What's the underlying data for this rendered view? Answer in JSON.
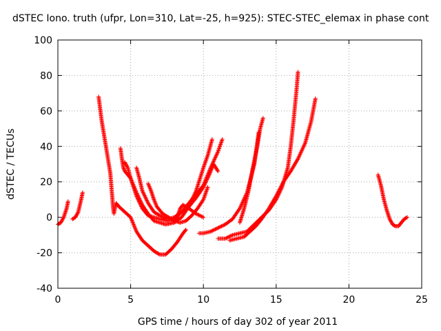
{
  "chart_data": {
    "type": "scatter",
    "title": "dSTEC Iono. truth (ufpr, Lon=310, Lat=-25, h=925): STEC-STEC_elemax in phase cont",
    "xlabel": "GPS time / hours of day 302 of year 2011",
    "ylabel": "dSTEC  / TECUs",
    "xlim": [
      0,
      25
    ],
    "ylim": [
      -40,
      100
    ],
    "xticks": [
      "0",
      "5",
      "10",
      "15",
      "20",
      "25"
    ],
    "yticks": [
      "-40",
      "-20",
      "0",
      "20",
      "40",
      "60",
      "80",
      "100"
    ],
    "grid": true,
    "marker": "+",
    "color": "#ff0000",
    "series": [
      {
        "points": [
          [
            0.0,
            -4
          ],
          [
            0.2,
            -3
          ],
          [
            0.4,
            0
          ],
          [
            0.6,
            5
          ],
          [
            0.7,
            9
          ]
        ]
      },
      {
        "points": [
          [
            1.0,
            -1
          ],
          [
            1.2,
            0
          ],
          [
            1.4,
            3
          ],
          [
            1.6,
            10
          ],
          [
            1.7,
            14
          ]
        ]
      },
      {
        "points": [
          [
            2.8,
            68
          ],
          [
            3.0,
            55
          ],
          [
            3.2,
            45
          ],
          [
            3.4,
            35
          ],
          [
            3.6,
            25
          ],
          [
            3.7,
            15
          ],
          [
            3.8,
            5
          ],
          [
            3.85,
            2
          ],
          [
            4.0,
            8
          ],
          [
            4.2,
            6
          ],
          [
            4.6,
            3
          ],
          [
            5.0,
            0
          ],
          [
            5.4,
            -8
          ],
          [
            5.8,
            -13
          ],
          [
            6.2,
            -16
          ],
          [
            6.6,
            -19
          ],
          [
            7.0,
            -21
          ],
          [
            7.4,
            -21
          ],
          [
            7.8,
            -18
          ],
          [
            8.2,
            -14
          ],
          [
            8.6,
            -9
          ],
          [
            8.8,
            -7
          ]
        ]
      },
      {
        "points": [
          [
            4.3,
            39
          ],
          [
            4.4,
            33
          ],
          [
            4.5,
            28
          ],
          [
            4.6,
            26
          ],
          [
            5.0,
            22
          ],
          [
            5.4,
            14
          ],
          [
            5.8,
            7
          ],
          [
            6.2,
            2
          ],
          [
            6.6,
            -2
          ],
          [
            7.0,
            -3
          ],
          [
            7.4,
            -4
          ],
          [
            8.0,
            -3
          ],
          [
            8.5,
            0
          ],
          [
            9.0,
            6
          ],
          [
            9.5,
            15
          ],
          [
            10.0,
            28
          ],
          [
            10.3,
            35
          ],
          [
            10.6,
            44
          ]
        ]
      },
      {
        "points": [
          [
            4.6,
            31
          ],
          [
            4.8,
            28
          ],
          [
            5.0,
            22
          ],
          [
            5.4,
            12
          ],
          [
            5.8,
            5
          ],
          [
            6.2,
            1
          ],
          [
            6.6,
            0
          ],
          [
            7.0,
            -1
          ],
          [
            7.5,
            -2
          ],
          [
            8.0,
            -1
          ],
          [
            8.5,
            3
          ],
          [
            9.0,
            8
          ],
          [
            9.5,
            13
          ],
          [
            10.0,
            18
          ],
          [
            10.5,
            28
          ],
          [
            11.0,
            37
          ],
          [
            11.3,
            44
          ]
        ]
      },
      {
        "points": [
          [
            5.4,
            28
          ],
          [
            5.6,
            22
          ],
          [
            5.8,
            15
          ],
          [
            6.2,
            8
          ],
          [
            6.6,
            3
          ],
          [
            7.0,
            1
          ],
          [
            7.5,
            -1
          ],
          [
            8.0,
            0
          ],
          [
            8.5,
            3
          ],
          [
            9.0,
            6
          ],
          [
            9.5,
            11
          ],
          [
            10.0,
            17
          ],
          [
            10.4,
            24
          ],
          [
            10.7,
            30
          ],
          [
            11.0,
            26
          ]
        ]
      },
      {
        "points": [
          [
            6.2,
            19
          ],
          [
            6.4,
            15
          ],
          [
            6.6,
            10
          ],
          [
            6.8,
            6
          ],
          [
            7.2,
            2
          ],
          [
            7.6,
            0
          ],
          [
            8.0,
            -2
          ],
          [
            8.4,
            -3
          ],
          [
            8.8,
            -2
          ],
          [
            9.2,
            1
          ],
          [
            9.6,
            5
          ],
          [
            10.0,
            10
          ],
          [
            10.3,
            17
          ]
        ]
      },
      {
        "points": [
          [
            8.0,
            -2
          ],
          [
            8.2,
            0
          ],
          [
            8.4,
            5
          ],
          [
            8.6,
            7
          ],
          [
            9.0,
            5
          ],
          [
            9.5,
            2
          ],
          [
            10.0,
            0
          ]
        ]
      },
      {
        "points": [
          [
            9.7,
            -9
          ],
          [
            10.0,
            -9
          ],
          [
            10.5,
            -8
          ],
          [
            11.0,
            -6
          ],
          [
            11.5,
            -4
          ],
          [
            12.0,
            -1
          ],
          [
            12.5,
            5
          ],
          [
            13.0,
            14
          ],
          [
            13.5,
            30
          ],
          [
            13.7,
            42
          ],
          [
            13.8,
            48
          ]
        ]
      },
      {
        "points": [
          [
            11.0,
            -12
          ],
          [
            11.5,
            -12
          ],
          [
            12.0,
            -10
          ],
          [
            12.5,
            -9
          ],
          [
            13.0,
            -8
          ],
          [
            13.5,
            -4
          ],
          [
            14.0,
            0
          ],
          [
            14.5,
            4
          ],
          [
            15.0,
            10
          ],
          [
            15.4,
            17
          ],
          [
            15.8,
            28
          ],
          [
            16.0,
            40
          ],
          [
            16.2,
            55
          ],
          [
            16.4,
            72
          ],
          [
            16.5,
            82
          ]
        ]
      },
      {
        "points": [
          [
            11.8,
            -13
          ],
          [
            12.3,
            -12
          ],
          [
            12.8,
            -11
          ],
          [
            13.2,
            -8
          ],
          [
            13.6,
            -5
          ],
          [
            14.0,
            -1
          ],
          [
            14.5,
            5
          ],
          [
            15.0,
            12
          ],
          [
            15.5,
            20
          ],
          [
            16.0,
            26
          ],
          [
            16.5,
            33
          ],
          [
            17.0,
            42
          ],
          [
            17.4,
            54
          ],
          [
            17.7,
            67
          ]
        ]
      },
      {
        "points": [
          [
            12.5,
            -3
          ],
          [
            12.8,
            5
          ],
          [
            13.1,
            15
          ],
          [
            13.4,
            28
          ],
          [
            13.7,
            40
          ],
          [
            13.9,
            50
          ],
          [
            14.1,
            56
          ]
        ]
      },
      {
        "points": [
          [
            22.0,
            24
          ],
          [
            22.2,
            18
          ],
          [
            22.4,
            10
          ],
          [
            22.6,
            4
          ],
          [
            22.8,
            -1
          ],
          [
            23.0,
            -4
          ],
          [
            23.2,
            -5
          ],
          [
            23.4,
            -5
          ],
          [
            23.6,
            -3
          ],
          [
            23.8,
            -1
          ],
          [
            24.0,
            0
          ]
        ]
      }
    ]
  }
}
